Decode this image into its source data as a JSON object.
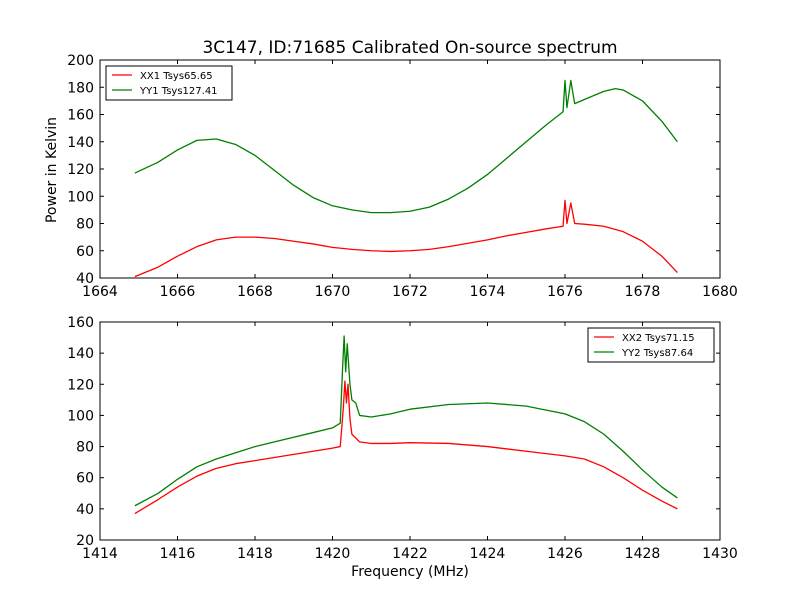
{
  "figure": {
    "title": "3C147, ID:71685 Calibrated On-source spectrum",
    "ylabel": "Power in Kelvin",
    "xlabel": "Frequency (MHz)"
  },
  "chart_data": [
    {
      "type": "line",
      "xlim": [
        1664,
        1680
      ],
      "ylim": [
        40,
        200
      ],
      "xticks": [
        "1664",
        "1666",
        "1668",
        "1670",
        "1672",
        "1674",
        "1676",
        "1678",
        "1680"
      ],
      "yticks": [
        "40",
        "60",
        "80",
        "100",
        "120",
        "140",
        "160",
        "180",
        "200"
      ],
      "legend_position": "top-left",
      "grid": false,
      "series": [
        {
          "name": "XX1 Tsys65.65",
          "color": "#ff0000",
          "points": [
            [
              1664.9,
              41
            ],
            [
              1665.5,
              48
            ],
            [
              1666.0,
              56
            ],
            [
              1666.5,
              63
            ],
            [
              1667.0,
              68
            ],
            [
              1667.5,
              70
            ],
            [
              1668.0,
              70
            ],
            [
              1668.5,
              69
            ],
            [
              1669.0,
              67
            ],
            [
              1669.5,
              65
            ],
            [
              1670.0,
              62.5
            ],
            [
              1670.5,
              61
            ],
            [
              1671.0,
              60
            ],
            [
              1671.5,
              59.5
            ],
            [
              1672.0,
              60
            ],
            [
              1672.5,
              61
            ],
            [
              1673.0,
              63
            ],
            [
              1673.5,
              65.5
            ],
            [
              1674.0,
              68
            ],
            [
              1674.5,
              71
            ],
            [
              1675.0,
              73.5
            ],
            [
              1675.5,
              76
            ],
            [
              1675.95,
              78
            ],
            [
              1676.0,
              97
            ],
            [
              1676.05,
              80
            ],
            [
              1676.15,
              95
            ],
            [
              1676.25,
              80
            ],
            [
              1676.5,
              79.5
            ],
            [
              1677.0,
              78
            ],
            [
              1677.5,
              74
            ],
            [
              1678.0,
              67
            ],
            [
              1678.5,
              56
            ],
            [
              1678.9,
              44
            ]
          ]
        },
        {
          "name": "YY1 Tsys127.41",
          "color": "#008000",
          "points": [
            [
              1664.9,
              117
            ],
            [
              1665.5,
              125
            ],
            [
              1666.0,
              134
            ],
            [
              1666.5,
              141
            ],
            [
              1667.0,
              142
            ],
            [
              1667.5,
              138
            ],
            [
              1668.0,
              130
            ],
            [
              1668.5,
              119
            ],
            [
              1669.0,
              108
            ],
            [
              1669.5,
              99
            ],
            [
              1670.0,
              93
            ],
            [
              1670.5,
              90
            ],
            [
              1671.0,
              88
            ],
            [
              1671.5,
              88
            ],
            [
              1672.0,
              89
            ],
            [
              1672.5,
              92
            ],
            [
              1673.0,
              98
            ],
            [
              1673.5,
              106
            ],
            [
              1674.0,
              116
            ],
            [
              1674.5,
              128
            ],
            [
              1675.0,
              140
            ],
            [
              1675.5,
              152
            ],
            [
              1675.95,
              162
            ],
            [
              1676.0,
              185
            ],
            [
              1676.05,
              165
            ],
            [
              1676.15,
              185
            ],
            [
              1676.25,
              168
            ],
            [
              1676.5,
              171
            ],
            [
              1677.0,
              177
            ],
            [
              1677.3,
              179
            ],
            [
              1677.5,
              178
            ],
            [
              1678.0,
              170
            ],
            [
              1678.5,
              155
            ],
            [
              1678.9,
              140
            ]
          ]
        }
      ]
    },
    {
      "type": "line",
      "xlim": [
        1414,
        1430
      ],
      "ylim": [
        20,
        160
      ],
      "xticks": [
        "1414",
        "1416",
        "1418",
        "1420",
        "1422",
        "1424",
        "1426",
        "1428",
        "1430"
      ],
      "yticks": [
        "20",
        "40",
        "60",
        "80",
        "100",
        "120",
        "140",
        "160"
      ],
      "legend_position": "top-right",
      "grid": false,
      "series": [
        {
          "name": "XX2 Tsys71.15",
          "color": "#ff0000",
          "points": [
            [
              1414.9,
              37
            ],
            [
              1415.5,
              46
            ],
            [
              1416.0,
              54
            ],
            [
              1416.5,
              61
            ],
            [
              1417.0,
              66
            ],
            [
              1417.5,
              69
            ],
            [
              1418.0,
              71
            ],
            [
              1418.5,
              73
            ],
            [
              1419.0,
              75
            ],
            [
              1419.5,
              77
            ],
            [
              1420.0,
              79
            ],
            [
              1420.2,
              80
            ],
            [
              1420.28,
              105
            ],
            [
              1420.32,
              122
            ],
            [
              1420.36,
              108
            ],
            [
              1420.4,
              120
            ],
            [
              1420.45,
              98
            ],
            [
              1420.5,
              88
            ],
            [
              1420.7,
              83
            ],
            [
              1421.0,
              82
            ],
            [
              1421.5,
              82
            ],
            [
              1422.0,
              82.5
            ],
            [
              1423.0,
              82
            ],
            [
              1424.0,
              80
            ],
            [
              1425.0,
              77
            ],
            [
              1426.0,
              74
            ],
            [
              1426.5,
              72
            ],
            [
              1427.0,
              67
            ],
            [
              1427.5,
              60
            ],
            [
              1428.0,
              52
            ],
            [
              1428.5,
              45
            ],
            [
              1428.9,
              40
            ]
          ]
        },
        {
          "name": "YY2 Tsys87.64",
          "color": "#008000",
          "points": [
            [
              1414.9,
              42
            ],
            [
              1415.5,
              50
            ],
            [
              1416.0,
              59
            ],
            [
              1416.5,
              67
            ],
            [
              1417.0,
              72
            ],
            [
              1417.5,
              76
            ],
            [
              1418.0,
              80
            ],
            [
              1418.5,
              83
            ],
            [
              1419.0,
              86
            ],
            [
              1419.5,
              89
            ],
            [
              1420.0,
              92
            ],
            [
              1420.2,
              95
            ],
            [
              1420.26,
              130
            ],
            [
              1420.3,
              151
            ],
            [
              1420.34,
              128
            ],
            [
              1420.38,
              146
            ],
            [
              1420.45,
              120
            ],
            [
              1420.5,
              110
            ],
            [
              1420.6,
              108
            ],
            [
              1420.7,
              100
            ],
            [
              1421.0,
              99
            ],
            [
              1421.5,
              101
            ],
            [
              1422.0,
              104
            ],
            [
              1423.0,
              107
            ],
            [
              1424.0,
              108
            ],
            [
              1425.0,
              106
            ],
            [
              1426.0,
              101
            ],
            [
              1426.5,
              96
            ],
            [
              1427.0,
              88
            ],
            [
              1427.5,
              77
            ],
            [
              1428.0,
              65
            ],
            [
              1428.5,
              54
            ],
            [
              1428.9,
              47
            ]
          ]
        }
      ]
    }
  ]
}
